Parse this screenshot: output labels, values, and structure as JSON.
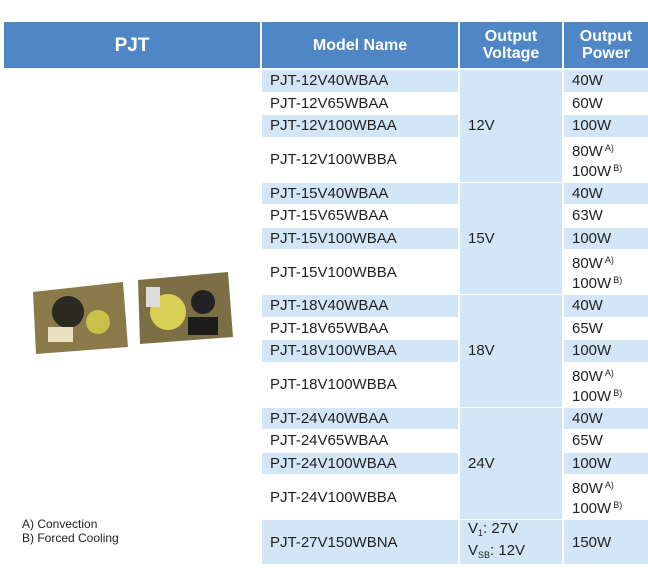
{
  "header": {
    "product": "PJT",
    "model": "Model Name",
    "voltage": [
      "Output",
      "Voltage"
    ],
    "power": [
      "Output",
      "Power"
    ]
  },
  "groups": [
    {
      "voltage": [
        {
          "text": "12V"
        }
      ],
      "rows": [
        {
          "model": "PJT-12V40WBAA",
          "power": [
            {
              "text": "40W"
            }
          ]
        },
        {
          "model": "PJT-12V65WBAA",
          "power": [
            {
              "text": "60W"
            }
          ]
        },
        {
          "model": "PJT-12V100WBAA",
          "power": [
            {
              "text": "100W"
            }
          ]
        },
        {
          "model": "PJT-12V100WBBA",
          "power": [
            {
              "text": "80W",
              "note": "A)"
            },
            {
              "text": "100W",
              "note": "B)"
            }
          ]
        }
      ]
    },
    {
      "voltage": [
        {
          "text": "15V"
        }
      ],
      "rows": [
        {
          "model": "PJT-15V40WBAA",
          "power": [
            {
              "text": "40W"
            }
          ]
        },
        {
          "model": "PJT-15V65WBAA",
          "power": [
            {
              "text": "63W"
            }
          ]
        },
        {
          "model": "PJT-15V100WBAA",
          "power": [
            {
              "text": "100W"
            }
          ]
        },
        {
          "model": "PJT-15V100WBBA",
          "power": [
            {
              "text": "80W",
              "note": "A)"
            },
            {
              "text": "100W",
              "note": "B)"
            }
          ]
        }
      ]
    },
    {
      "voltage": [
        {
          "text": "18V"
        }
      ],
      "rows": [
        {
          "model": "PJT-18V40WBAA",
          "power": [
            {
              "text": "40W"
            }
          ]
        },
        {
          "model": "PJT-18V65WBAA",
          "power": [
            {
              "text": "65W"
            }
          ]
        },
        {
          "model": "PJT-18V100WBAA",
          "power": [
            {
              "text": "100W"
            }
          ]
        },
        {
          "model": "PJT-18V100WBBA",
          "power": [
            {
              "text": "80W",
              "note": "A)"
            },
            {
              "text": "100W",
              "note": "B)"
            }
          ]
        }
      ]
    },
    {
      "voltage": [
        {
          "text": "24V"
        }
      ],
      "rows": [
        {
          "model": "PJT-24V40WBAA",
          "power": [
            {
              "text": "40W"
            }
          ]
        },
        {
          "model": "PJT-24V65WBAA",
          "power": [
            {
              "text": "65W"
            }
          ]
        },
        {
          "model": "PJT-24V100WBAA",
          "power": [
            {
              "text": "100W"
            }
          ]
        },
        {
          "model": "PJT-24V100WBBA",
          "power": [
            {
              "text": "80W",
              "note": "A)"
            },
            {
              "text": "100W",
              "note": "B)"
            }
          ]
        }
      ]
    },
    {
      "voltage": [
        {
          "symbol": "V",
          "sub": "1",
          "text": ": 27V"
        },
        {
          "symbol": "V",
          "sub": "SB",
          "text": ": 12V"
        }
      ],
      "rows": [
        {
          "model": "PJT-27V150WBNA",
          "power": [
            {
              "text": "150W"
            }
          ]
        }
      ]
    }
  ],
  "footnotes": [
    "A) Convection",
    "B) Forced Cooling"
  ]
}
